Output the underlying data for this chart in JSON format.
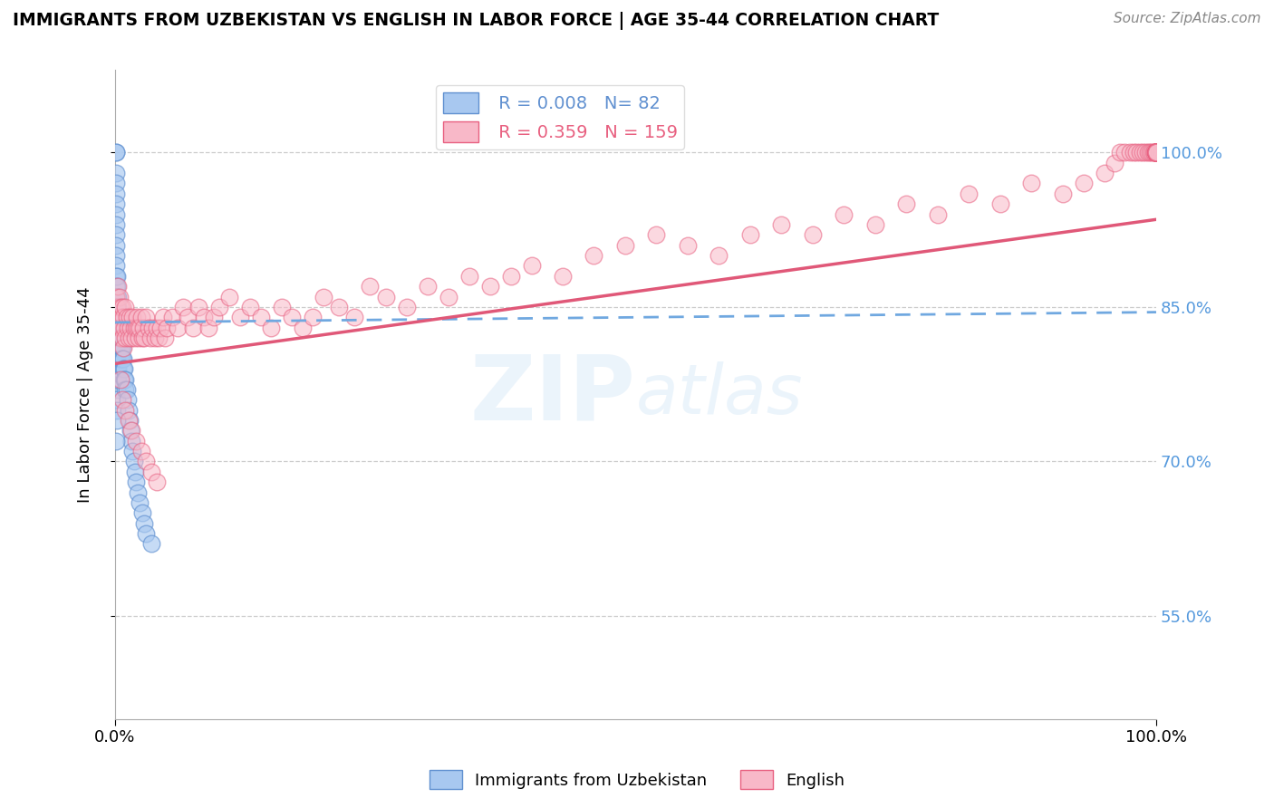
{
  "title": "IMMIGRANTS FROM UZBEKISTAN VS ENGLISH IN LABOR FORCE | AGE 35-44 CORRELATION CHART",
  "source": "Source: ZipAtlas.com",
  "ylabel": "In Labor Force | Age 35-44",
  "xlim": [
    0.0,
    1.0
  ],
  "ylim": [
    0.45,
    1.08
  ],
  "yticks": [
    0.55,
    0.7,
    0.85,
    1.0
  ],
  "ytick_labels": [
    "55.0%",
    "70.0%",
    "85.0%",
    "100.0%"
  ],
  "blue_R": 0.008,
  "blue_N": 82,
  "pink_R": 0.359,
  "pink_N": 159,
  "blue_color": "#a8c8f0",
  "pink_color": "#f8b8c8",
  "blue_edge_color": "#6090d0",
  "pink_edge_color": "#e86080",
  "blue_line_color": "#70a8e0",
  "pink_line_color": "#e05878",
  "legend_label_blue": "Immigrants from Uzbekistan",
  "legend_label_pink": "English",
  "watermark": "ZIPatlas",
  "blue_x": [
    0.001,
    0.001,
    0.001,
    0.001,
    0.001,
    0.001,
    0.001,
    0.001,
    0.001,
    0.001,
    0.001,
    0.001,
    0.001,
    0.001,
    0.001,
    0.001,
    0.001,
    0.001,
    0.001,
    0.001,
    0.002,
    0.002,
    0.002,
    0.002,
    0.002,
    0.002,
    0.002,
    0.002,
    0.002,
    0.002,
    0.002,
    0.002,
    0.002,
    0.002,
    0.002,
    0.003,
    0.003,
    0.003,
    0.003,
    0.003,
    0.003,
    0.003,
    0.003,
    0.003,
    0.004,
    0.004,
    0.004,
    0.004,
    0.004,
    0.005,
    0.005,
    0.005,
    0.005,
    0.006,
    0.006,
    0.006,
    0.007,
    0.007,
    0.008,
    0.008,
    0.009,
    0.009,
    0.01,
    0.01,
    0.011,
    0.012,
    0.013,
    0.014,
    0.015,
    0.016,
    0.017,
    0.018,
    0.019,
    0.02,
    0.022,
    0.024,
    0.026,
    0.028,
    0.03,
    0.035,
    0.001,
    0.002
  ],
  "blue_y": [
    1.0,
    1.0,
    0.98,
    0.97,
    0.96,
    0.95,
    0.94,
    0.93,
    0.92,
    0.91,
    0.9,
    0.89,
    0.88,
    0.87,
    0.86,
    0.85,
    0.84,
    0.83,
    0.82,
    0.81,
    0.8,
    0.88,
    0.87,
    0.86,
    0.85,
    0.84,
    0.83,
    0.82,
    0.81,
    0.8,
    0.79,
    0.78,
    0.77,
    0.76,
    0.75,
    0.86,
    0.85,
    0.84,
    0.83,
    0.82,
    0.81,
    0.8,
    0.79,
    0.78,
    0.84,
    0.83,
    0.82,
    0.81,
    0.8,
    0.83,
    0.82,
    0.81,
    0.8,
    0.82,
    0.81,
    0.8,
    0.81,
    0.8,
    0.8,
    0.79,
    0.79,
    0.78,
    0.78,
    0.77,
    0.77,
    0.76,
    0.75,
    0.74,
    0.73,
    0.72,
    0.71,
    0.7,
    0.69,
    0.68,
    0.67,
    0.66,
    0.65,
    0.64,
    0.63,
    0.62,
    0.72,
    0.74
  ],
  "pink_x": [
    0.001,
    0.002,
    0.003,
    0.003,
    0.004,
    0.004,
    0.005,
    0.005,
    0.006,
    0.006,
    0.007,
    0.007,
    0.008,
    0.008,
    0.009,
    0.01,
    0.01,
    0.011,
    0.012,
    0.013,
    0.014,
    0.015,
    0.016,
    0.017,
    0.018,
    0.019,
    0.02,
    0.021,
    0.022,
    0.023,
    0.024,
    0.025,
    0.026,
    0.027,
    0.028,
    0.03,
    0.032,
    0.034,
    0.036,
    0.038,
    0.04,
    0.042,
    0.044,
    0.046,
    0.048,
    0.05,
    0.055,
    0.06,
    0.065,
    0.07,
    0.075,
    0.08,
    0.085,
    0.09,
    0.095,
    0.1,
    0.11,
    0.12,
    0.13,
    0.14,
    0.15,
    0.16,
    0.17,
    0.18,
    0.19,
    0.2,
    0.215,
    0.23,
    0.245,
    0.26,
    0.28,
    0.3,
    0.32,
    0.34,
    0.36,
    0.38,
    0.4,
    0.43,
    0.46,
    0.49,
    0.52,
    0.55,
    0.58,
    0.61,
    0.64,
    0.67,
    0.7,
    0.73,
    0.76,
    0.79,
    0.82,
    0.85,
    0.88,
    0.91,
    0.93,
    0.95,
    0.96,
    0.965,
    0.97,
    0.975,
    0.978,
    0.981,
    0.984,
    0.987,
    0.99,
    0.992,
    0.994,
    0.996,
    0.997,
    0.998,
    0.999,
    1.0,
    1.0,
    1.0,
    1.0,
    1.0,
    1.0,
    1.0,
    1.0,
    1.0,
    1.0,
    1.0,
    1.0,
    1.0,
    1.0,
    1.0,
    1.0,
    1.0,
    1.0,
    1.0,
    1.0,
    1.0,
    1.0,
    1.0,
    1.0,
    1.0,
    1.0,
    1.0,
    1.0,
    1.0,
    1.0,
    1.0,
    1.0,
    1.0,
    1.0,
    1.0,
    1.0,
    1.0,
    1.0,
    1.0,
    0.005,
    0.007,
    0.01,
    0.013,
    0.016,
    0.02,
    0.025,
    0.03,
    0.035,
    0.04
  ],
  "pink_y": [
    0.86,
    0.85,
    0.87,
    0.84,
    0.86,
    0.83,
    0.85,
    0.82,
    0.84,
    0.83,
    0.85,
    0.82,
    0.84,
    0.81,
    0.83,
    0.85,
    0.82,
    0.84,
    0.83,
    0.82,
    0.84,
    0.83,
    0.82,
    0.84,
    0.83,
    0.82,
    0.83,
    0.84,
    0.83,
    0.82,
    0.83,
    0.84,
    0.82,
    0.83,
    0.82,
    0.84,
    0.83,
    0.82,
    0.83,
    0.82,
    0.83,
    0.82,
    0.83,
    0.84,
    0.82,
    0.83,
    0.84,
    0.83,
    0.85,
    0.84,
    0.83,
    0.85,
    0.84,
    0.83,
    0.84,
    0.85,
    0.86,
    0.84,
    0.85,
    0.84,
    0.83,
    0.85,
    0.84,
    0.83,
    0.84,
    0.86,
    0.85,
    0.84,
    0.87,
    0.86,
    0.85,
    0.87,
    0.86,
    0.88,
    0.87,
    0.88,
    0.89,
    0.88,
    0.9,
    0.91,
    0.92,
    0.91,
    0.9,
    0.92,
    0.93,
    0.92,
    0.94,
    0.93,
    0.95,
    0.94,
    0.96,
    0.95,
    0.97,
    0.96,
    0.97,
    0.98,
    0.99,
    1.0,
    1.0,
    1.0,
    1.0,
    1.0,
    1.0,
    1.0,
    1.0,
    1.0,
    1.0,
    1.0,
    1.0,
    1.0,
    1.0,
    1.0,
    1.0,
    1.0,
    1.0,
    1.0,
    1.0,
    1.0,
    1.0,
    1.0,
    1.0,
    1.0,
    1.0,
    1.0,
    1.0,
    1.0,
    1.0,
    1.0,
    1.0,
    1.0,
    1.0,
    1.0,
    1.0,
    1.0,
    1.0,
    1.0,
    1.0,
    1.0,
    1.0,
    1.0,
    1.0,
    1.0,
    1.0,
    1.0,
    1.0,
    1.0,
    1.0,
    1.0,
    1.0,
    1.0,
    0.78,
    0.76,
    0.75,
    0.74,
    0.73,
    0.72,
    0.71,
    0.7,
    0.69,
    0.68
  ],
  "blue_trend_x": [
    0.0,
    1.0
  ],
  "blue_trend_y_start": 0.835,
  "blue_trend_y_end": 0.845,
  "pink_trend_x": [
    0.0,
    1.0
  ],
  "pink_trend_y_start": 0.795,
  "pink_trend_y_end": 0.935
}
